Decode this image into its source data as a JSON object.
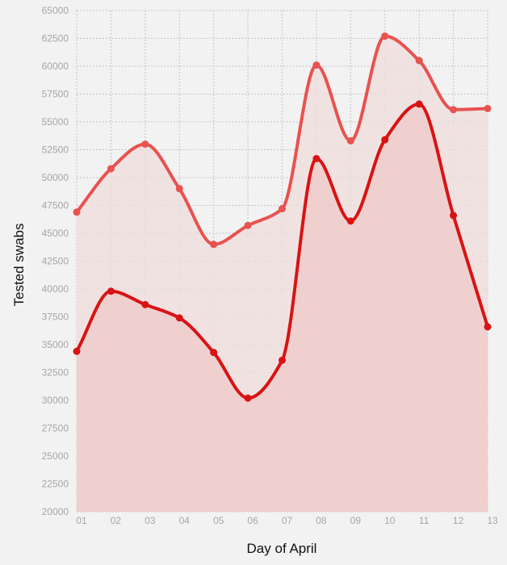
{
  "chart_data": {
    "type": "area",
    "title": "",
    "xlabel": "Day of April",
    "ylabel": "Tested swabs",
    "categories": [
      "01",
      "02",
      "03",
      "04",
      "05",
      "06",
      "07",
      "08",
      "09",
      "10",
      "11",
      "12",
      "13"
    ],
    "ylim": [
      20000,
      65000
    ],
    "ytick_step": 2500,
    "grid": true,
    "legend": "none",
    "series": [
      {
        "color": "#e8524f",
        "fill": "#f0dddd",
        "values": [
          46900,
          50800,
          53000,
          49000,
          44000,
          45700,
          47200,
          60100,
          53300,
          62700,
          60500,
          56100,
          56200
        ]
      },
      {
        "color": "#d91313",
        "fill": "#f0caca",
        "values": [
          34400,
          39800,
          38600,
          37400,
          34300,
          30200,
          33600,
          51700,
          46100,
          53400,
          56600,
          46600,
          36600
        ]
      }
    ]
  }
}
